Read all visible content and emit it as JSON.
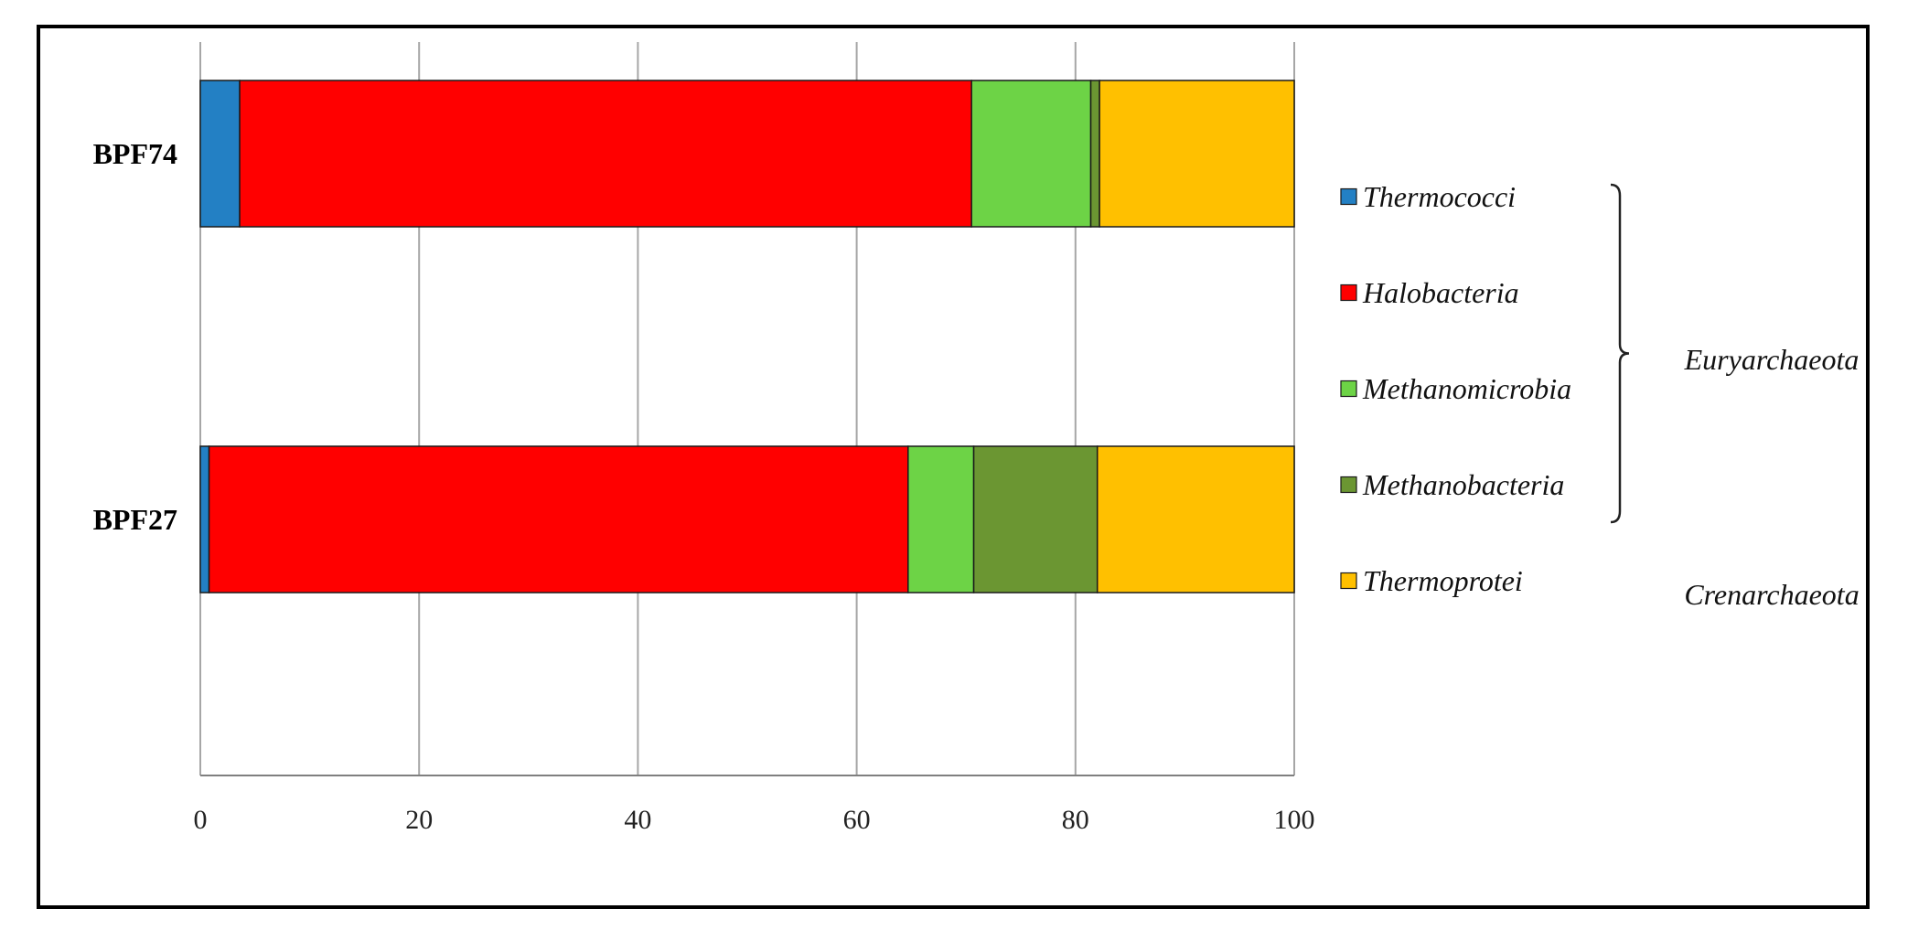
{
  "chart_data": {
    "type": "bar",
    "orientation": "horizontal",
    "stacked": true,
    "categories": [
      "BPF74",
      "BPF27"
    ],
    "series": [
      {
        "name": "Thermococci",
        "color": "#2380c4",
        "values": [
          3.6,
          0.8
        ]
      },
      {
        "name": "Halobacteria",
        "color": "#ff0000",
        "values": [
          66.9,
          63.9
        ]
      },
      {
        "name": "Methanomicrobia",
        "color": "#6dd346",
        "values": [
          10.9,
          6.0
        ]
      },
      {
        "name": "Methanobacteria",
        "color": "#6b9632",
        "values": [
          0.8,
          11.3
        ]
      },
      {
        "name": "Thermoprotei",
        "color": "#ffc000",
        "values": [
          17.8,
          18.0
        ]
      }
    ],
    "xlim": [
      0,
      100
    ],
    "xticks": [
      "0",
      "20",
      "40",
      "60",
      "80",
      "100"
    ],
    "grid": "vertical",
    "legend": "right",
    "groups": [
      {
        "label": "Euryarchaeota",
        "members": [
          "Thermococci",
          "Halobacteria",
          "Methanomicrobia",
          "Methanobacteria"
        ]
      },
      {
        "label": "Crenarchaeota",
        "members": [
          "Thermoprotei"
        ]
      }
    ],
    "title": "",
    "xlabel": "",
    "ylabel": ""
  }
}
